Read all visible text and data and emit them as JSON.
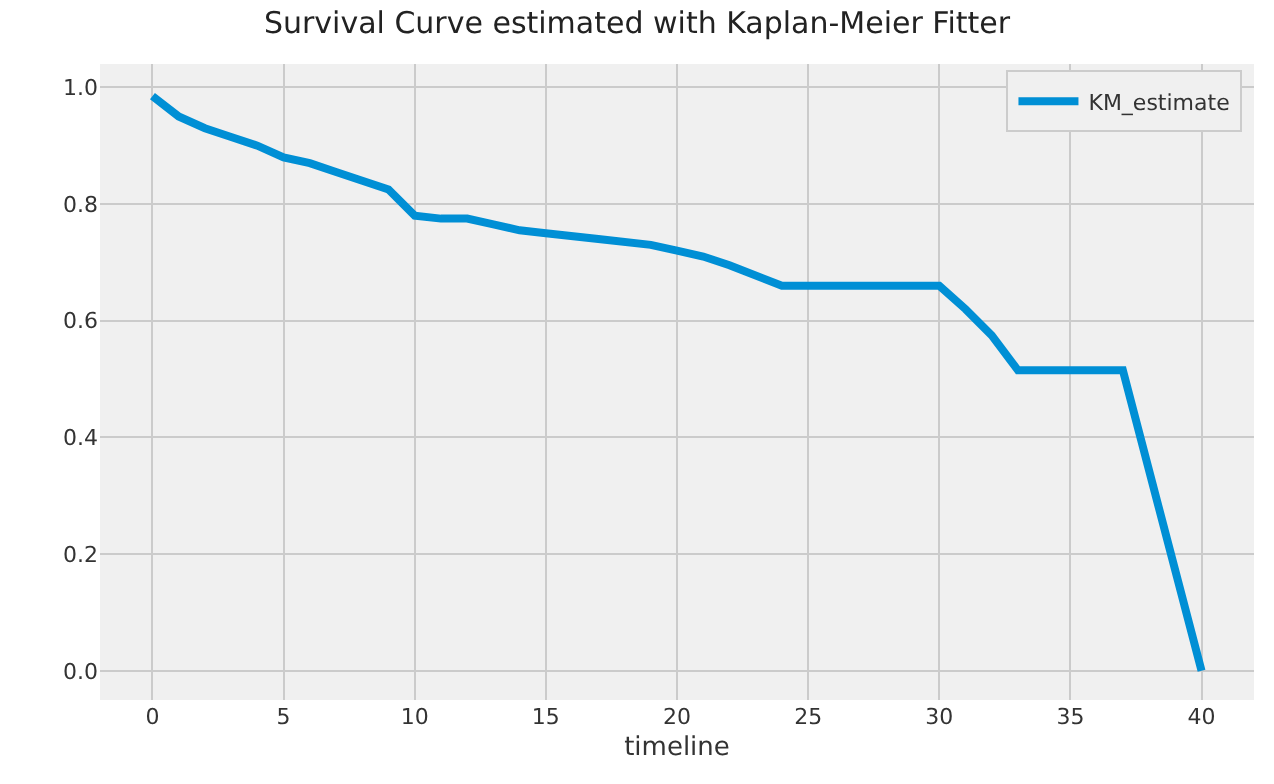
{
  "chart_data": {
    "type": "line",
    "title": "Survival Curve estimated with Kaplan-Meier Fitter",
    "xlabel": "timeline",
    "x": [
      0,
      1,
      2,
      3,
      4,
      5,
      6,
      7,
      8,
      9,
      10,
      11,
      12,
      13,
      14,
      15,
      17,
      19,
      20,
      21,
      22,
      24,
      30,
      31,
      32,
      33,
      37,
      40
    ],
    "series": [
      {
        "name": "KM_estimate",
        "color": "#008fd5",
        "values": [
          0.985,
          0.95,
          0.93,
          0.915,
          0.9,
          0.88,
          0.87,
          0.855,
          0.84,
          0.825,
          0.78,
          0.775,
          0.775,
          0.765,
          0.755,
          0.75,
          0.74,
          0.73,
          0.72,
          0.71,
          0.695,
          0.66,
          0.66,
          0.62,
          0.575,
          0.515,
          0.515,
          0.0
        ]
      }
    ],
    "xlim": [
      -2,
      42
    ],
    "xticks": [
      0,
      5,
      10,
      15,
      20,
      25,
      30,
      35,
      40
    ],
    "ylim": [
      -0.05,
      1.04
    ],
    "yticks": [
      {
        "value": 0,
        "label": "0.0"
      },
      {
        "value": 0.2,
        "label": "0.2"
      },
      {
        "value": 0.4,
        "label": "0.4"
      },
      {
        "value": 0.6,
        "label": "0.6"
      },
      {
        "value": 0.8,
        "label": "0.8"
      },
      {
        "value": 1.0,
        "label": "1.0"
      }
    ],
    "grid": true,
    "legend": "top right",
    "marker": "none",
    "line_style": "solid"
  }
}
